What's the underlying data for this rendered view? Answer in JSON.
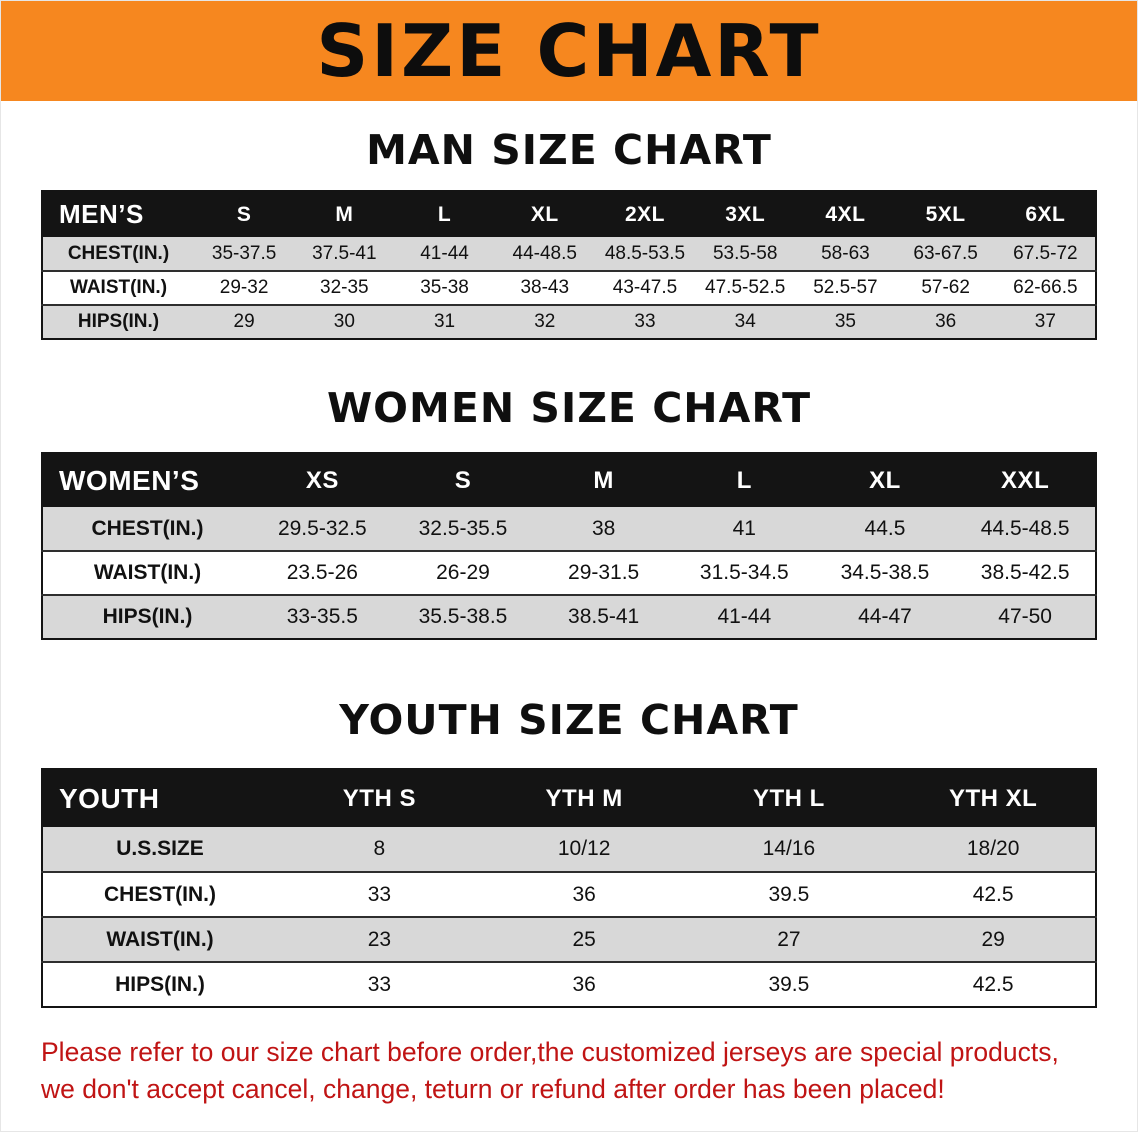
{
  "banner": {
    "title": "SIZE CHART"
  },
  "colors": {
    "banner_bg": "#f6871f",
    "table_header_band": "#141414",
    "row_shaded": "#d8d8d8",
    "footer_text": "#c01414"
  },
  "tables": [
    {
      "title": "MAN SIZE CHART",
      "header": [
        "MEN’S",
        "S",
        "M",
        "L",
        "XL",
        "2XL",
        "3XL",
        "4XL",
        "5XL",
        "6XL"
      ],
      "rows": [
        [
          "CHEST(IN.)",
          "35-37.5",
          "37.5-41",
          "41-44",
          "44-48.5",
          "48.5-53.5",
          "53.5-58",
          "58-63",
          "63-67.5",
          "67.5-72"
        ],
        [
          "WAIST(IN.)",
          "29-32",
          "32-35",
          "35-38",
          "38-43",
          "43-47.5",
          "47.5-52.5",
          "52.5-57",
          "57-62",
          "62-66.5"
        ],
        [
          "HIPS(IN.)",
          "29",
          "30",
          "31",
          "32",
          "33",
          "34",
          "35",
          "36",
          "37"
        ]
      ]
    },
    {
      "title": "WOMEN SIZE CHART",
      "header": [
        "WOMEN’S",
        "XS",
        "S",
        "M",
        "L",
        "XL",
        "XXL"
      ],
      "rows": [
        [
          "CHEST(IN.)",
          "29.5-32.5",
          "32.5-35.5",
          "38",
          "41",
          "44.5",
          "44.5-48.5"
        ],
        [
          "WAIST(IN.)",
          "23.5-26",
          "26-29",
          "29-31.5",
          "31.5-34.5",
          "34.5-38.5",
          "38.5-42.5"
        ],
        [
          "HIPS(IN.)",
          "33-35.5",
          "35.5-38.5",
          "38.5-41",
          "41-44",
          "44-47",
          "47-50"
        ]
      ]
    },
    {
      "title": "YOUTH SIZE CHART",
      "header": [
        "YOUTH",
        "YTH S",
        "YTH M",
        "YTH L",
        "YTH XL"
      ],
      "rows": [
        [
          "U.S.SIZE",
          "8",
          "10/12",
          "14/16",
          "18/20"
        ],
        [
          "CHEST(IN.)",
          "33",
          "36",
          "39.5",
          "42.5"
        ],
        [
          "WAIST(IN.)",
          "23",
          "25",
          "27",
          "29"
        ],
        [
          "HIPS(IN.)",
          "33",
          "36",
          "39.5",
          "42.5"
        ]
      ]
    }
  ],
  "footer": {
    "lines": [
      "Please refer to our size chart before order,the customized jerseys are special products,",
      "we don't accept cancel, change, teturn or refund after order has been placed!"
    ]
  }
}
